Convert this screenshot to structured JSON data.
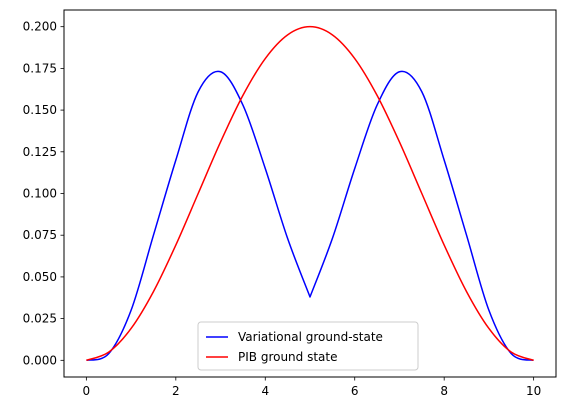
{
  "chart_data": {
    "type": "line",
    "title": "",
    "xlabel": "",
    "ylabel": "",
    "xlim": [
      -0.5,
      10.5
    ],
    "ylim": [
      -0.01,
      0.21
    ],
    "xticks": [
      0,
      2,
      4,
      6,
      8,
      10
    ],
    "xtick_labels": [
      "0",
      "2",
      "4",
      "6",
      "8",
      "10"
    ],
    "yticks": [
      0.0,
      0.025,
      0.05,
      0.075,
      0.1,
      0.125,
      0.15,
      0.175,
      0.2
    ],
    "ytick_labels": [
      "0.000",
      "0.025",
      "0.050",
      "0.075",
      "0.100",
      "0.125",
      "0.150",
      "0.175",
      "0.200"
    ],
    "grid": false,
    "legend_position": "lower-center",
    "x": [
      0,
      0.5,
      1.0,
      1.5,
      2.0,
      2.5,
      3.0,
      3.5,
      4.0,
      4.5,
      5.0,
      5.5,
      6.0,
      6.5,
      7.0,
      7.5,
      8.0,
      8.5,
      9.0,
      9.5,
      10.0
    ],
    "series": [
      {
        "name": "Variational ground-state",
        "color": "#0000ff",
        "values": [
          0.0,
          0.004,
          0.03,
          0.075,
          0.12,
          0.161,
          0.173,
          0.153,
          0.115,
          0.073,
          0.038,
          0.073,
          0.115,
          0.153,
          0.173,
          0.161,
          0.12,
          0.075,
          0.03,
          0.004,
          0.0
        ]
      },
      {
        "name": "PIB ground state",
        "color": "#ff0000",
        "values": [
          0.0,
          0.0049,
          0.0191,
          0.0412,
          0.0691,
          0.1,
          0.1309,
          0.1588,
          0.1809,
          0.1951,
          0.2,
          0.1951,
          0.1809,
          0.1588,
          0.1309,
          0.1,
          0.0691,
          0.0412,
          0.0191,
          0.0049,
          0.0
        ]
      }
    ]
  }
}
